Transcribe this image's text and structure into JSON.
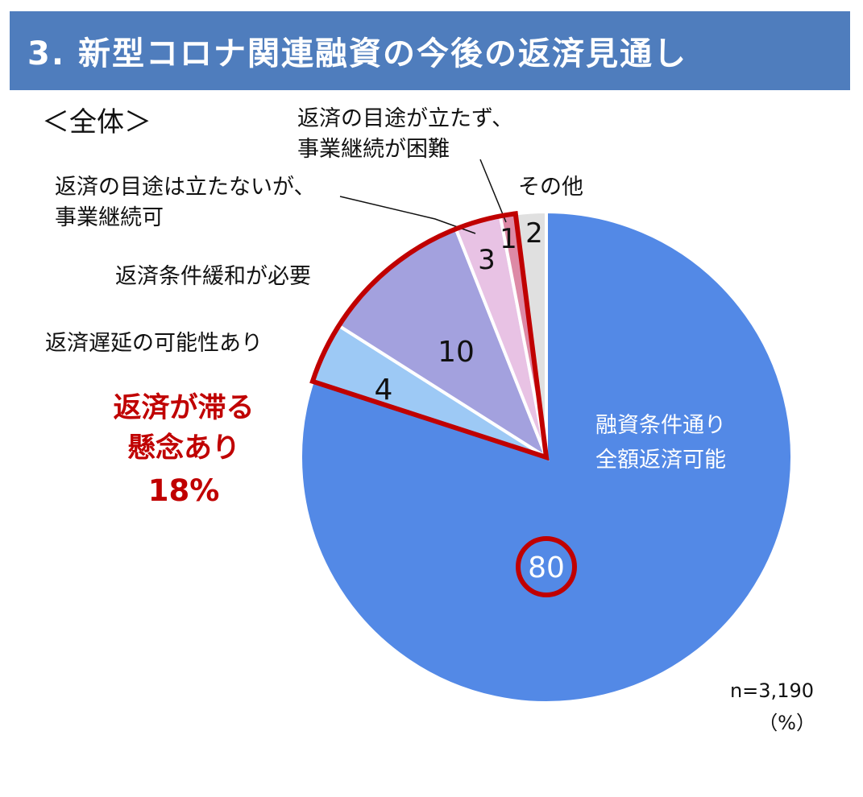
{
  "header": {
    "title": "3. 新型コロナ関連融資の今後の返済見通し"
  },
  "subtitle": "＜全体＞",
  "sample_note": "n=3,190",
  "unit_note": "（%）",
  "highlight": {
    "line1": "返済が滞る",
    "line2": "懸念あり",
    "value": "18%",
    "color": "#c00000"
  },
  "chart_data": {
    "type": "pie",
    "title": "3. 新型コロナ関連融資の今後の返済見通し",
    "subtitle": "＜全体＞",
    "unit": "%",
    "n": "3,190",
    "start": "12 o'clock",
    "direction": "clockwise",
    "slices": [
      {
        "name": "融資条件通り全額返済可能",
        "label_lines": [
          "融資条件通り",
          "全額返済可能"
        ],
        "value": 80,
        "display": "80",
        "color": "#5389e6",
        "highlighted": false
      },
      {
        "name": "返済遅延の可能性あり",
        "label_lines": [
          "返済遅延の可能性あり"
        ],
        "value": 4,
        "display": "4",
        "color": "#9dc9f5",
        "highlighted": true
      },
      {
        "name": "返済条件緩和が必要",
        "label_lines": [
          "返済条件緩和が必要"
        ],
        "value": 10,
        "display": "10",
        "color": "#a3a1de",
        "highlighted": true
      },
      {
        "name": "返済の目途は立たないが、事業継続可",
        "label_lines": [
          "返済の目途は立たないが、",
          "事業継続可"
        ],
        "value": 3,
        "display": "3",
        "color": "#e8c2e4",
        "highlighted": true
      },
      {
        "name": "返済の目途が立たず、事業継続が困難",
        "label_lines": [
          "返済の目途が立たず、",
          "事業継続が困難"
        ],
        "value": 1,
        "display": "1",
        "color": "#dd8aa6",
        "highlighted": true
      },
      {
        "name": "その他",
        "label_lines": [
          "その他"
        ],
        "value": 2,
        "display": "2",
        "color": "#e0e0e0",
        "highlighted": false
      }
    ],
    "highlight_group": {
      "label": "返済が滞る懸念あり",
      "value": 18,
      "display": "18%"
    }
  }
}
